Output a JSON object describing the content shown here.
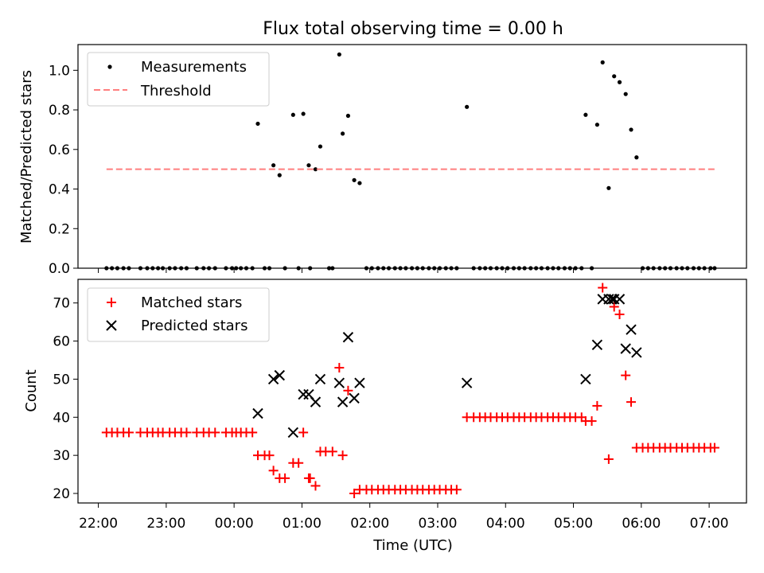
{
  "title": "Flux total observing time = 0.00 h",
  "x_axis": {
    "label": "Time (UTC)",
    "ticks": [
      "22:00",
      "23:00",
      "00:00",
      "01:00",
      "02:00",
      "03:00",
      "04:00",
      "05:00",
      "06:00",
      "07:00"
    ]
  },
  "colors": {
    "measurements": "#000000",
    "threshold": "#ff7f7f",
    "matched": "#ff0000",
    "predicted": "#000000"
  },
  "chart_data": [
    {
      "type": "scatter",
      "ylabel": "Matched/Predicted stars",
      "xlim": [
        21.7,
        31.55
      ],
      "ylim": [
        0,
        1.13
      ],
      "yticks": [
        "0.0",
        "0.2",
        "0.4",
        "0.6",
        "0.8",
        "1.0"
      ],
      "ytick_values": [
        0,
        0.2,
        0.4,
        0.6,
        0.8,
        1.0
      ],
      "legend": {
        "position": "top-left",
        "entries": [
          "Measurements",
          "Threshold"
        ]
      },
      "series": [
        {
          "name": "Measurements",
          "points": [
            [
              22.12,
              0
            ],
            [
              22.2,
              0
            ],
            [
              22.28,
              0
            ],
            [
              22.37,
              0
            ],
            [
              22.45,
              0
            ],
            [
              22.62,
              0
            ],
            [
              22.72,
              0
            ],
            [
              22.8,
              0
            ],
            [
              22.88,
              0
            ],
            [
              22.95,
              0
            ],
            [
              23.05,
              0
            ],
            [
              23.13,
              0
            ],
            [
              23.22,
              0
            ],
            [
              23.3,
              0
            ],
            [
              23.45,
              0
            ],
            [
              23.55,
              0
            ],
            [
              23.63,
              0
            ],
            [
              23.72,
              0
            ],
            [
              23.88,
              0
            ],
            [
              23.97,
              0
            ],
            [
              24.03,
              0
            ],
            [
              24.1,
              0
            ],
            [
              24.18,
              0
            ],
            [
              24.27,
              0
            ],
            [
              24.35,
              0.73
            ],
            [
              24.45,
              0
            ],
            [
              24.52,
              0
            ],
            [
              24.58,
              0.52
            ],
            [
              24.67,
              0.47
            ],
            [
              24.75,
              0
            ],
            [
              24.87,
              0.775
            ],
            [
              24.95,
              0
            ],
            [
              25.02,
              0.78
            ],
            [
              25.1,
              0.52
            ],
            [
              25.12,
              0
            ],
            [
              25.2,
              0.5
            ],
            [
              25.27,
              0.615
            ],
            [
              25.4,
              0
            ],
            [
              25.45,
              0
            ],
            [
              25.55,
              1.08
            ],
            [
              25.6,
              0.68
            ],
            [
              25.68,
              0.77
            ],
            [
              25.77,
              0.445
            ],
            [
              25.85,
              0.43
            ],
            [
              25.95,
              0
            ],
            [
              26.03,
              0
            ],
            [
              26.12,
              0
            ],
            [
              26.2,
              0
            ],
            [
              26.28,
              0
            ],
            [
              26.37,
              0
            ],
            [
              26.45,
              0
            ],
            [
              26.53,
              0
            ],
            [
              26.62,
              0
            ],
            [
              26.7,
              0
            ],
            [
              26.78,
              0
            ],
            [
              26.87,
              0
            ],
            [
              26.95,
              0
            ],
            [
              27.03,
              0
            ],
            [
              27.12,
              0
            ],
            [
              27.2,
              0
            ],
            [
              27.28,
              0
            ],
            [
              27.43,
              0.815
            ],
            [
              27.53,
              0
            ],
            [
              27.62,
              0
            ],
            [
              27.7,
              0
            ],
            [
              27.78,
              0
            ],
            [
              27.87,
              0
            ],
            [
              27.95,
              0
            ],
            [
              28.03,
              0
            ],
            [
              28.12,
              0
            ],
            [
              28.2,
              0
            ],
            [
              28.28,
              0
            ],
            [
              28.37,
              0
            ],
            [
              28.45,
              0
            ],
            [
              28.53,
              0
            ],
            [
              28.62,
              0
            ],
            [
              28.7,
              0
            ],
            [
              28.78,
              0
            ],
            [
              28.87,
              0
            ],
            [
              28.95,
              0
            ],
            [
              29.03,
              0
            ],
            [
              29.12,
              0
            ],
            [
              29.18,
              0.775
            ],
            [
              29.27,
              0
            ],
            [
              29.35,
              0.725
            ],
            [
              29.43,
              1.04
            ],
            [
              29.52,
              0.405
            ],
            [
              29.6,
              0.97
            ],
            [
              29.68,
              0.94
            ],
            [
              29.77,
              0.88
            ],
            [
              29.85,
              0.7
            ],
            [
              29.93,
              0.56
            ],
            [
              30.02,
              0
            ],
            [
              30.1,
              0
            ],
            [
              30.18,
              0
            ],
            [
              30.27,
              0
            ],
            [
              30.35,
              0
            ],
            [
              30.43,
              0
            ],
            [
              30.52,
              0
            ],
            [
              30.6,
              0
            ],
            [
              30.68,
              0
            ],
            [
              30.77,
              0
            ],
            [
              30.85,
              0
            ],
            [
              30.93,
              0
            ],
            [
              31.02,
              0
            ],
            [
              31.08,
              0
            ]
          ]
        },
        {
          "name": "Threshold",
          "x": [
            22.12,
            31.08
          ],
          "y": [
            0.5,
            0.5
          ]
        }
      ]
    },
    {
      "type": "scatter",
      "ylabel": "Count",
      "xlim": [
        21.7,
        31.55
      ],
      "ylim": [
        17.5,
        76.2
      ],
      "yticks": [
        "20",
        "30",
        "40",
        "50",
        "60",
        "70"
      ],
      "ytick_values": [
        20,
        30,
        40,
        50,
        60,
        70
      ],
      "legend": {
        "position": "top-left",
        "entries": [
          "Matched stars",
          "Predicted stars"
        ]
      },
      "series": [
        {
          "name": "Matched stars",
          "points": [
            [
              22.12,
              36
            ],
            [
              22.2,
              36
            ],
            [
              22.28,
              36
            ],
            [
              22.37,
              36
            ],
            [
              22.45,
              36
            ],
            [
              22.62,
              36
            ],
            [
              22.72,
              36
            ],
            [
              22.8,
              36
            ],
            [
              22.88,
              36
            ],
            [
              22.95,
              36
            ],
            [
              23.05,
              36
            ],
            [
              23.13,
              36
            ],
            [
              23.22,
              36
            ],
            [
              23.3,
              36
            ],
            [
              23.45,
              36
            ],
            [
              23.55,
              36
            ],
            [
              23.63,
              36
            ],
            [
              23.72,
              36
            ],
            [
              23.88,
              36
            ],
            [
              23.97,
              36
            ],
            [
              24.03,
              36
            ],
            [
              24.1,
              36
            ],
            [
              24.18,
              36
            ],
            [
              24.27,
              36
            ],
            [
              24.35,
              30
            ],
            [
              24.45,
              30
            ],
            [
              24.52,
              30
            ],
            [
              24.58,
              26
            ],
            [
              24.67,
              24
            ],
            [
              24.75,
              24
            ],
            [
              24.87,
              28
            ],
            [
              24.95,
              28
            ],
            [
              25.02,
              36
            ],
            [
              25.1,
              24
            ],
            [
              25.12,
              24
            ],
            [
              25.2,
              22
            ],
            [
              25.27,
              31
            ],
            [
              25.35,
              31
            ],
            [
              25.45,
              31
            ],
            [
              25.55,
              53
            ],
            [
              25.6,
              30
            ],
            [
              25.68,
              47
            ],
            [
              25.77,
              20
            ],
            [
              25.85,
              21
            ],
            [
              25.95,
              21
            ],
            [
              26.03,
              21
            ],
            [
              26.12,
              21
            ],
            [
              26.2,
              21
            ],
            [
              26.28,
              21
            ],
            [
              26.37,
              21
            ],
            [
              26.45,
              21
            ],
            [
              26.53,
              21
            ],
            [
              26.62,
              21
            ],
            [
              26.7,
              21
            ],
            [
              26.78,
              21
            ],
            [
              26.87,
              21
            ],
            [
              26.95,
              21
            ],
            [
              27.03,
              21
            ],
            [
              27.12,
              21
            ],
            [
              27.2,
              21
            ],
            [
              27.28,
              21
            ],
            [
              27.43,
              40
            ],
            [
              27.53,
              40
            ],
            [
              27.62,
              40
            ],
            [
              27.7,
              40
            ],
            [
              27.78,
              40
            ],
            [
              27.87,
              40
            ],
            [
              27.95,
              40
            ],
            [
              28.03,
              40
            ],
            [
              28.12,
              40
            ],
            [
              28.2,
              40
            ],
            [
              28.28,
              40
            ],
            [
              28.37,
              40
            ],
            [
              28.45,
              40
            ],
            [
              28.53,
              40
            ],
            [
              28.62,
              40
            ],
            [
              28.7,
              40
            ],
            [
              28.78,
              40
            ],
            [
              28.87,
              40
            ],
            [
              28.95,
              40
            ],
            [
              29.03,
              40
            ],
            [
              29.12,
              40
            ],
            [
              29.18,
              39
            ],
            [
              29.27,
              39
            ],
            [
              29.35,
              43
            ],
            [
              29.43,
              74
            ],
            [
              29.52,
              29
            ],
            [
              29.6,
              69
            ],
            [
              29.68,
              67
            ],
            [
              29.77,
              51
            ],
            [
              29.85,
              44
            ],
            [
              29.93,
              32
            ],
            [
              30.02,
              32
            ],
            [
              30.1,
              32
            ],
            [
              30.18,
              32
            ],
            [
              30.27,
              32
            ],
            [
              30.35,
              32
            ],
            [
              30.43,
              32
            ],
            [
              30.52,
              32
            ],
            [
              30.6,
              32
            ],
            [
              30.68,
              32
            ],
            [
              30.77,
              32
            ],
            [
              30.85,
              32
            ],
            [
              30.93,
              32
            ],
            [
              31.02,
              32
            ],
            [
              31.08,
              32
            ]
          ]
        },
        {
          "name": "Predicted stars",
          "points": [
            [
              24.35,
              41
            ],
            [
              24.58,
              50
            ],
            [
              24.67,
              51
            ],
            [
              24.87,
              36
            ],
            [
              25.02,
              46
            ],
            [
              25.1,
              46
            ],
            [
              25.2,
              44
            ],
            [
              25.27,
              50
            ],
            [
              25.55,
              49
            ],
            [
              25.6,
              44
            ],
            [
              25.68,
              61
            ],
            [
              25.77,
              45
            ],
            [
              25.85,
              49
            ],
            [
              27.43,
              49
            ],
            [
              29.18,
              50
            ],
            [
              29.35,
              59
            ],
            [
              29.43,
              71
            ],
            [
              29.52,
              71
            ],
            [
              29.57,
              71
            ],
            [
              29.6,
              71
            ],
            [
              29.68,
              71
            ],
            [
              29.77,
              58
            ],
            [
              29.85,
              63
            ],
            [
              29.93,
              57
            ]
          ]
        }
      ]
    }
  ]
}
